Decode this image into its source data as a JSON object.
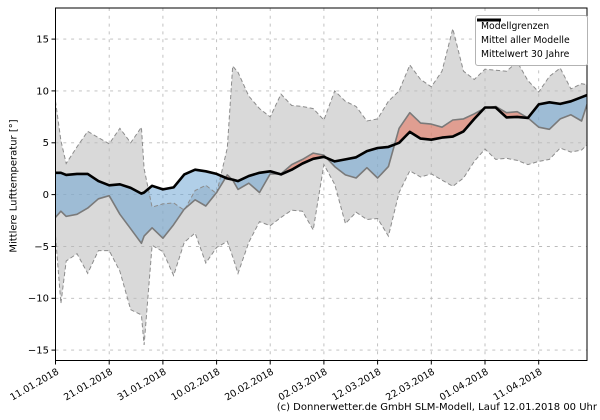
{
  "chart_data": {
    "type": "line",
    "title": "",
    "ylabel": "Mittlere Lufttemperatur [°]",
    "xlabel": "",
    "caption": "(c) Donnerwetter.de GmbH SLM-Modell, Lauf 12.01.2018 00 Uhr",
    "ylim": [
      -16,
      18
    ],
    "xlim_days": [
      0,
      99
    ],
    "grid": true,
    "x_tick_days": [
      0,
      10,
      20,
      30,
      40,
      50,
      60,
      70,
      80,
      90
    ],
    "x_tick_labels": [
      "11.01.2018",
      "21.01.2018",
      "31.01.2018",
      "10.02.2018",
      "20.02.2018",
      "02.03.2018",
      "12.03.2018",
      "22.03.2018",
      "01.04.2018",
      "11.04.2018"
    ],
    "y_ticks": [
      -15,
      -10,
      -5,
      0,
      5,
      10,
      15
    ],
    "y_tick_labels": [
      "−15",
      "−10",
      "−5",
      "0",
      "5",
      "10",
      "15"
    ],
    "legend": {
      "position": "top-right",
      "entries": [
        {
          "label": "Modellgrenzen",
          "style": "dashed-gray"
        },
        {
          "label": "Mittel aller Modelle",
          "style": "solid-gray"
        },
        {
          "label": "Mittelwert 30 Jahre",
          "style": "thick-black"
        }
      ]
    },
    "colors": {
      "band": "#d9d9d9",
      "boundary": "#8c8c8c",
      "model_mean": "#7a7a7a",
      "mean_30y": "#000000",
      "below_fill": "rgba(100,160,210,0.5)",
      "above_fill": "rgba(230,110,85,0.55)",
      "grid": "#bbbbbb",
      "frame": "#000000"
    },
    "series": {
      "days": [
        0,
        1,
        2,
        4,
        6,
        8,
        10,
        12,
        14,
        16,
        16.5,
        18,
        20,
        22,
        24,
        26,
        28,
        30,
        32,
        33,
        34,
        36,
        38,
        40,
        42,
        44,
        46,
        48,
        50,
        52,
        54,
        56,
        58,
        60,
        62,
        64,
        66,
        68,
        70,
        72,
        74,
        76,
        78,
        80,
        82,
        84,
        86,
        88,
        90,
        92,
        94,
        96,
        98,
        99
      ],
      "model_max": [
        9.0,
        5.2,
        3.0,
        4.6,
        6.1,
        5.5,
        4.9,
        6.4,
        5.0,
        6.5,
        2.5,
        -1.2,
        -0.9,
        -0.8,
        -1.5,
        0.4,
        0.9,
        0.1,
        4.5,
        12.4,
        11.8,
        9.5,
        8.3,
        7.5,
        9.7,
        8.6,
        8.5,
        8.3,
        7.2,
        10.0,
        9.0,
        8.5,
        7.1,
        7.3,
        9.0,
        10.0,
        12.5,
        11.1,
        10.4,
        11.9,
        16.0,
        11.9,
        11.1,
        12.1,
        12.0,
        11.9,
        12.8,
        11.0,
        9.9,
        11.4,
        12.2,
        10.2,
        10.7,
        10.6
      ],
      "model_min": [
        -4.0,
        -10.5,
        -6.4,
        -5.7,
        -7.6,
        -5.4,
        -5.4,
        -7.4,
        -11.1,
        -11.6,
        -14.5,
        -4.9,
        -5.5,
        -7.8,
        -4.6,
        -3.7,
        -6.6,
        -5.1,
        -4.5,
        -6.0,
        -7.6,
        -4.6,
        -2.6,
        -3.0,
        -2.2,
        -1.5,
        -1.6,
        -3.4,
        2.9,
        1.0,
        -2.8,
        -1.7,
        -2.4,
        -2.3,
        -4.0,
        0.2,
        2.3,
        1.7,
        2.0,
        1.4,
        0.8,
        1.6,
        3.2,
        4.4,
        3.4,
        3.5,
        3.3,
        2.9,
        3.2,
        3.4,
        4.5,
        4.1,
        4.3,
        4.8
      ],
      "model_mean": [
        -2.2,
        -1.6,
        -2.1,
        -1.9,
        -1.3,
        -0.4,
        -0.1,
        -1.9,
        -3.3,
        -4.7,
        -4.0,
        -3.2,
        -4.2,
        -2.9,
        -1.4,
        -0.5,
        -1.1,
        0.2,
        1.9,
        1.4,
        0.5,
        1.1,
        0.2,
        2.0,
        2.0,
        2.9,
        3.4,
        4.0,
        3.8,
        2.7,
        1.9,
        1.6,
        2.6,
        1.6,
        2.7,
        6.4,
        7.9,
        6.9,
        6.8,
        6.5,
        7.2,
        7.3,
        7.8,
        8.35,
        8.5,
        7.9,
        8.0,
        7.4,
        6.5,
        6.3,
        7.3,
        7.7,
        7.1,
        8.7
      ],
      "mean_30y": [
        2.1,
        2.1,
        1.9,
        2.0,
        2.0,
        1.3,
        0.9,
        1.0,
        0.65,
        0.1,
        0.2,
        0.85,
        0.5,
        0.7,
        1.95,
        2.4,
        2.25,
        2.0,
        1.55,
        1.45,
        1.3,
        1.8,
        2.1,
        2.25,
        1.95,
        2.4,
        3.0,
        3.45,
        3.65,
        3.2,
        3.4,
        3.6,
        4.2,
        4.5,
        4.6,
        5.0,
        6.05,
        5.4,
        5.3,
        5.5,
        5.6,
        6.1,
        7.3,
        8.4,
        8.4,
        7.45,
        7.5,
        7.4,
        8.7,
        8.9,
        8.75,
        9.0,
        9.4,
        9.6
      ]
    }
  }
}
